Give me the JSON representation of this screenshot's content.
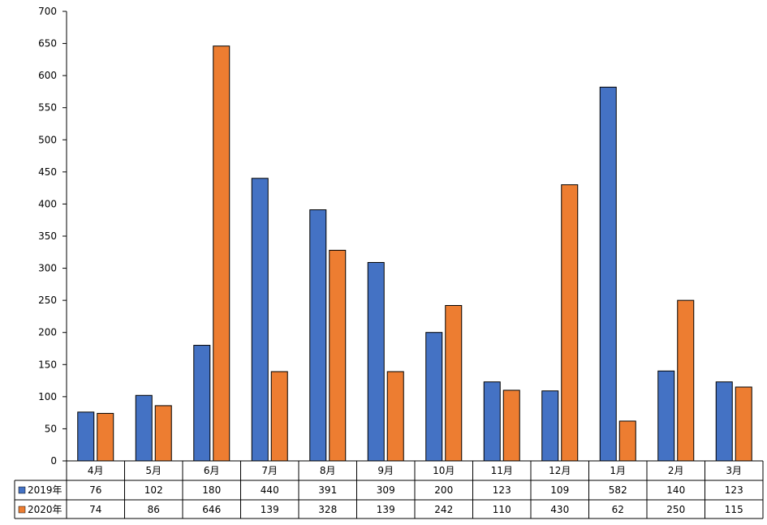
{
  "chart_data": {
    "type": "bar",
    "title": "",
    "xlabel": "",
    "ylabel": "",
    "categories": [
      "4月",
      "5月",
      "6月",
      "7月",
      "8月",
      "9月",
      "10月",
      "11月",
      "12月",
      "1月",
      "2月",
      "3月"
    ],
    "series": [
      {
        "name": "2019年",
        "color": "#4472C4",
        "values": [
          76,
          102,
          180,
          440,
          391,
          309,
          200,
          123,
          109,
          582,
          140,
          123
        ]
      },
      {
        "name": "2020年",
        "color": "#ED7D31",
        "values": [
          74,
          86,
          646,
          139,
          328,
          139,
          242,
          110,
          430,
          62,
          250,
          115
        ]
      }
    ],
    "ylim": [
      0,
      700
    ],
    "yticks": [
      0,
      50,
      100,
      150,
      200,
      250,
      300,
      350,
      400,
      450,
      500,
      550,
      600,
      650,
      700
    ],
    "grid": false,
    "legend": "data-table-left",
    "data_table": true
  }
}
